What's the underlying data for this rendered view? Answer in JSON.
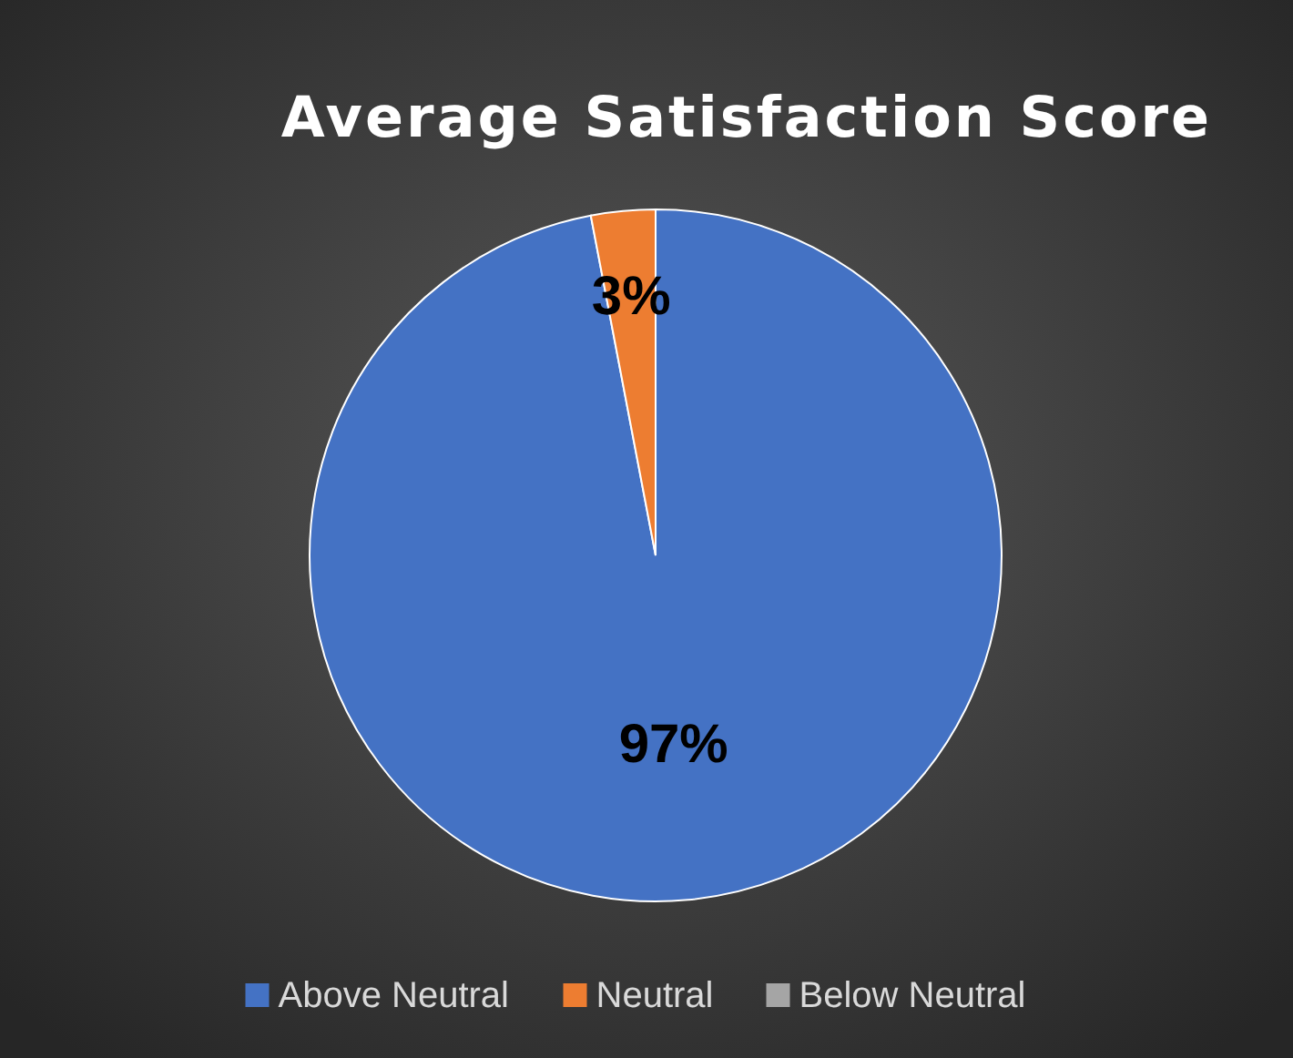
{
  "chart_data": {
    "type": "pie",
    "title": "Average Satisfaction Score",
    "categories": [
      "Above Neutral",
      "Neutral",
      "Below Neutral"
    ],
    "values": [
      97,
      3,
      0
    ],
    "colors": [
      "#4472c4",
      "#ed7d31",
      "#a5a5a5"
    ],
    "value_labels": [
      "97%",
      "3%",
      null
    ],
    "legend": "bottom"
  }
}
